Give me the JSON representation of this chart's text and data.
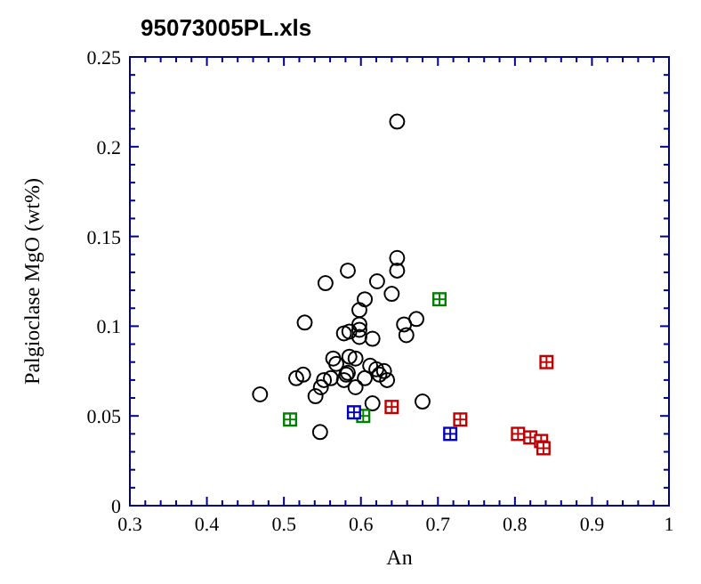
{
  "chart_data": {
    "type": "scatter",
    "title": "95073005PL.xls",
    "xlabel": "An",
    "ylabel": "Palgioclase MgO (wt%)",
    "xlim": [
      0.3,
      1
    ],
    "ylim": [
      0,
      0.25
    ],
    "xticks": [
      0.3,
      {
        "value": 0.32,
        "label": null
      },
      {
        "value": 0.34,
        "label": null
      },
      {
        "value": 0.36,
        "label": null
      },
      {
        "value": 0.38,
        "label": null
      },
      0.4,
      {
        "value": 0.42,
        "label": null
      },
      {
        "value": 0.44,
        "label": null
      },
      {
        "value": 0.46,
        "label": null
      },
      {
        "value": 0.48,
        "label": null
      },
      0.5,
      {
        "value": 0.52,
        "label": null
      },
      {
        "value": 0.54,
        "label": null
      },
      {
        "value": 0.56,
        "label": null
      },
      {
        "value": 0.58,
        "label": null
      },
      0.6,
      {
        "value": 0.62,
        "label": null
      },
      {
        "value": 0.64,
        "label": null
      },
      {
        "value": 0.66,
        "label": null
      },
      {
        "value": 0.68,
        "label": null
      },
      0.7,
      {
        "value": 0.72,
        "label": null
      },
      {
        "value": 0.74,
        "label": null
      },
      {
        "value": 0.76,
        "label": null
      },
      {
        "value": 0.78,
        "label": null
      },
      0.8,
      {
        "value": 0.82,
        "label": null
      },
      {
        "value": 0.84,
        "label": null
      },
      {
        "value": 0.86,
        "label": null
      },
      {
        "value": 0.88,
        "label": null
      },
      0.9,
      {
        "value": 0.92,
        "label": null
      },
      {
        "value": 0.94,
        "label": null
      },
      {
        "value": 0.96,
        "label": null
      },
      {
        "value": 0.98,
        "label": null
      },
      1
    ],
    "yticks": [
      0,
      {
        "value": 0.01,
        "label": null
      },
      {
        "value": 0.02,
        "label": null
      },
      {
        "value": 0.03,
        "label": null
      },
      {
        "value": 0.04,
        "label": null
      },
      0.05,
      {
        "value": 0.06,
        "label": null
      },
      {
        "value": 0.07,
        "label": null
      },
      {
        "value": 0.08,
        "label": null
      },
      {
        "value": 0.09,
        "label": null
      },
      0.1,
      {
        "value": 0.11,
        "label": null
      },
      {
        "value": 0.12,
        "label": null
      },
      {
        "value": 0.13,
        "label": null
      },
      {
        "value": 0.14,
        "label": null
      },
      0.15,
      {
        "value": 0.16,
        "label": null
      },
      {
        "value": 0.17,
        "label": null
      },
      {
        "value": 0.18,
        "label": null
      },
      {
        "value": 0.19,
        "label": null
      },
      0.2,
      {
        "value": 0.21,
        "label": null
      },
      {
        "value": 0.22,
        "label": null
      },
      {
        "value": 0.23,
        "label": null
      },
      {
        "value": 0.24,
        "label": null
      },
      0.25
    ],
    "grid": false,
    "series": [
      {
        "color": "#000000",
        "marker": "circle",
        "x": [
          0.647,
          0.647,
          0.647,
          0.583,
          0.554,
          0.621,
          0.64,
          0.605,
          0.598,
          0.527,
          0.598,
          0.598,
          0.578,
          0.585,
          0.598,
          0.615,
          0.656,
          0.672,
          0.659,
          0.564,
          0.585,
          0.593,
          0.568,
          0.583,
          0.581,
          0.612,
          0.62,
          0.63,
          0.624,
          0.634,
          0.605,
          0.593,
          0.578,
          0.525,
          0.516,
          0.561,
          0.552,
          0.548,
          0.541,
          0.469,
          0.615,
          0.68,
          0.547
        ],
        "values": [
          0.214,
          0.138,
          0.131,
          0.131,
          0.124,
          0.125,
          0.118,
          0.115,
          0.109,
          0.102,
          0.101,
          0.098,
          0.096,
          0.097,
          0.094,
          0.093,
          0.101,
          0.104,
          0.095,
          0.082,
          0.083,
          0.082,
          0.079,
          0.074,
          0.073,
          0.078,
          0.076,
          0.075,
          0.073,
          0.07,
          0.071,
          0.066,
          0.07,
          0.073,
          0.071,
          0.071,
          0.07,
          0.066,
          0.061,
          0.062,
          0.057,
          0.058,
          0.041
        ]
      },
      {
        "color": "#008000",
        "marker": "square",
        "x": [
          0.508,
          0.603,
          0.702
        ],
        "values": [
          0.048,
          0.05,
          0.115
        ]
      },
      {
        "color": "#0000c0",
        "marker": "square",
        "x": [
          0.591,
          0.716
        ],
        "values": [
          0.052,
          0.04
        ]
      },
      {
        "color": "#c00000",
        "marker": "square",
        "x": [
          0.64,
          0.729,
          0.804,
          0.82,
          0.834,
          0.837,
          0.841
        ],
        "values": [
          0.055,
          0.048,
          0.04,
          0.038,
          0.036,
          0.032,
          0.08
        ]
      }
    ]
  }
}
